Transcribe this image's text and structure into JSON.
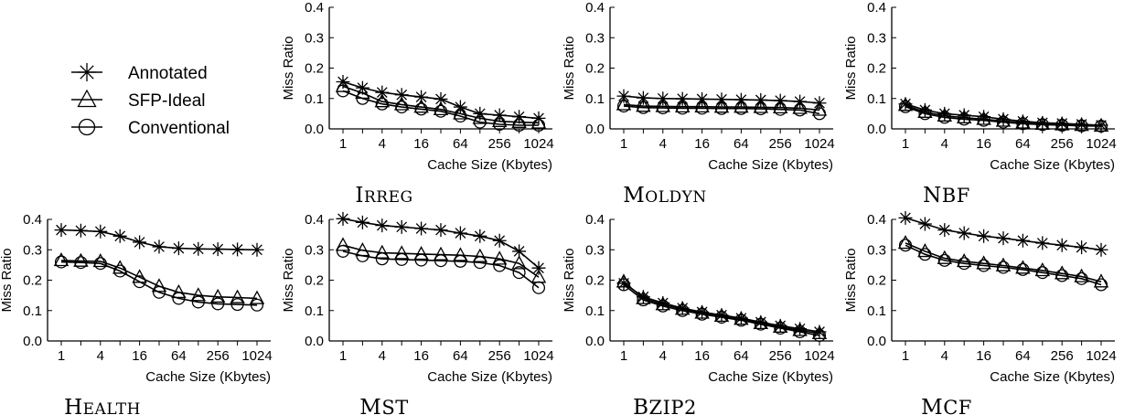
{
  "legend": {
    "items": [
      {
        "label": "Annotated",
        "marker": "asterisk"
      },
      {
        "label": "SFP-Ideal",
        "marker": "triangle"
      },
      {
        "label": "Conventional",
        "marker": "circle"
      }
    ]
  },
  "chart_data": [
    {
      "type": "line",
      "title": "IRREG",
      "xlabel": "Cache Size (Kbytes)",
      "ylabel": "Miss Ratio",
      "scale": "log2",
      "x": [
        1,
        2,
        4,
        8,
        16,
        32,
        64,
        128,
        256,
        512,
        1024
      ],
      "xticks": [
        "1",
        "4",
        "16",
        "64",
        "256",
        "1024"
      ],
      "ylim": [
        0,
        0.4
      ],
      "yticks": [
        "0.0",
        "0.1",
        "0.2",
        "0.3",
        "0.4"
      ],
      "series": [
        {
          "name": "Annotated",
          "values": [
            0.155,
            0.135,
            0.12,
            0.112,
            0.105,
            0.098,
            0.072,
            0.05,
            0.045,
            0.04,
            0.035
          ]
        },
        {
          "name": "SFP-Ideal",
          "values": [
            0.14,
            0.118,
            0.09,
            0.08,
            0.072,
            0.064,
            0.05,
            0.035,
            0.025,
            0.022,
            0.02
          ]
        },
        {
          "name": "Conventional",
          "values": [
            0.125,
            0.1,
            0.082,
            0.072,
            0.065,
            0.058,
            0.042,
            0.022,
            0.015,
            0.012,
            0.012
          ]
        }
      ]
    },
    {
      "type": "line",
      "title": "MOLDYN",
      "xlabel": "Cache Size (Kbytes)",
      "ylabel": "Miss Ratio",
      "scale": "log2",
      "x": [
        1,
        2,
        4,
        8,
        16,
        32,
        64,
        128,
        256,
        512,
        1024
      ],
      "xticks": [
        "1",
        "4",
        "16",
        "64",
        "256",
        "1024"
      ],
      "ylim": [
        0,
        0.4
      ],
      "yticks": [
        "0.0",
        "0.1",
        "0.2",
        "0.3",
        "0.4"
      ],
      "series": [
        {
          "name": "Annotated",
          "values": [
            0.108,
            0.102,
            0.1,
            0.099,
            0.098,
            0.097,
            0.096,
            0.095,
            0.093,
            0.09,
            0.085
          ]
        },
        {
          "name": "SFP-Ideal",
          "values": [
            0.08,
            0.075,
            0.074,
            0.073,
            0.073,
            0.072,
            0.072,
            0.071,
            0.07,
            0.068,
            0.062
          ]
        },
        {
          "name": "Conventional",
          "values": [
            0.075,
            0.07,
            0.069,
            0.068,
            0.068,
            0.067,
            0.067,
            0.066,
            0.064,
            0.062,
            0.05
          ]
        }
      ]
    },
    {
      "type": "line",
      "title": "NBF",
      "xlabel": "Cache Size (Kbytes)",
      "ylabel": "Miss Ratio",
      "scale": "log2",
      "x": [
        1,
        2,
        4,
        8,
        16,
        32,
        64,
        128,
        256,
        512,
        1024
      ],
      "xticks": [
        "1",
        "4",
        "16",
        "64",
        "256",
        "1024"
      ],
      "ylim": [
        0,
        0.4
      ],
      "yticks": [
        "0.0",
        "0.1",
        "0.2",
        "0.3",
        "0.4"
      ],
      "series": [
        {
          "name": "Annotated",
          "values": [
            0.082,
            0.062,
            0.05,
            0.045,
            0.04,
            0.032,
            0.025,
            0.02,
            0.018,
            0.015,
            0.012
          ]
        },
        {
          "name": "SFP-Ideal",
          "values": [
            0.078,
            0.055,
            0.043,
            0.037,
            0.032,
            0.026,
            0.02,
            0.016,
            0.014,
            0.012,
            0.01
          ]
        },
        {
          "name": "Conventional",
          "values": [
            0.073,
            0.05,
            0.038,
            0.032,
            0.028,
            0.022,
            0.017,
            0.014,
            0.012,
            0.01,
            0.009
          ]
        }
      ]
    },
    {
      "type": "line",
      "title": "HEALTH",
      "xlabel": "Cache Size (Kbytes)",
      "ylabel": "Miss Ratio",
      "scale": "log2",
      "x": [
        1,
        2,
        4,
        8,
        16,
        32,
        64,
        128,
        256,
        512,
        1024
      ],
      "xticks": [
        "1",
        "4",
        "16",
        "64",
        "256",
        "1024"
      ],
      "ylim": [
        0,
        0.4
      ],
      "yticks": [
        "0.0",
        "0.1",
        "0.2",
        "0.3",
        "0.4"
      ],
      "series": [
        {
          "name": "Annotated",
          "values": [
            0.365,
            0.363,
            0.36,
            0.345,
            0.325,
            0.31,
            0.305,
            0.303,
            0.302,
            0.301,
            0.3
          ]
        },
        {
          "name": "SFP-Ideal",
          "values": [
            0.265,
            0.263,
            0.262,
            0.24,
            0.21,
            0.18,
            0.16,
            0.15,
            0.145,
            0.143,
            0.14
          ]
        },
        {
          "name": "Conventional",
          "values": [
            0.26,
            0.258,
            0.255,
            0.23,
            0.195,
            0.16,
            0.14,
            0.128,
            0.122,
            0.12,
            0.118
          ]
        }
      ]
    },
    {
      "type": "line",
      "title": "MST",
      "xlabel": "Cache Size (Kbytes)",
      "ylabel": "Miss Ratio",
      "scale": "log2",
      "x": [
        1,
        2,
        4,
        8,
        16,
        32,
        64,
        128,
        256,
        512,
        1024
      ],
      "xticks": [
        "1",
        "4",
        "16",
        "64",
        "256",
        "1024"
      ],
      "ylim": [
        0,
        0.4
      ],
      "yticks": [
        "0.0",
        "0.1",
        "0.2",
        "0.3",
        "0.4"
      ],
      "series": [
        {
          "name": "Annotated",
          "values": [
            0.402,
            0.39,
            0.38,
            0.375,
            0.37,
            0.365,
            0.355,
            0.345,
            0.33,
            0.295,
            0.24
          ]
        },
        {
          "name": "SFP-Ideal",
          "values": [
            0.315,
            0.298,
            0.29,
            0.288,
            0.286,
            0.284,
            0.282,
            0.278,
            0.27,
            0.255,
            0.21
          ]
        },
        {
          "name": "Conventional",
          "values": [
            0.295,
            0.28,
            0.27,
            0.268,
            0.266,
            0.264,
            0.262,
            0.258,
            0.248,
            0.225,
            0.175
          ]
        }
      ]
    },
    {
      "type": "line",
      "title": "BZIP2",
      "xlabel": "Cache Size (Kbytes)",
      "ylabel": "Miss Ratio",
      "scale": "log2",
      "x": [
        1,
        2,
        4,
        8,
        16,
        32,
        64,
        128,
        256,
        512,
        1024
      ],
      "xticks": [
        "1",
        "4",
        "16",
        "64",
        "256",
        "1024"
      ],
      "ylim": [
        0,
        0.4
      ],
      "yticks": [
        "0.0",
        "0.1",
        "0.2",
        "0.3",
        "0.4"
      ],
      "series": [
        {
          "name": "Annotated",
          "values": [
            0.19,
            0.145,
            0.125,
            0.108,
            0.095,
            0.085,
            0.075,
            0.062,
            0.05,
            0.04,
            0.03
          ]
        },
        {
          "name": "SFP-Ideal",
          "values": [
            0.195,
            0.14,
            0.12,
            0.105,
            0.092,
            0.082,
            0.072,
            0.058,
            0.046,
            0.035,
            0.025
          ]
        },
        {
          "name": "Conventional",
          "values": [
            0.185,
            0.135,
            0.115,
            0.1,
            0.088,
            0.078,
            0.068,
            0.055,
            0.042,
            0.03,
            0.018
          ]
        }
      ]
    },
    {
      "type": "line",
      "title": "MCF",
      "xlabel": "Cache Size (Kbytes)",
      "ylabel": "Miss Ratio",
      "scale": "log2",
      "x": [
        1,
        2,
        4,
        8,
        16,
        32,
        64,
        128,
        256,
        512,
        1024
      ],
      "xticks": [
        "1",
        "4",
        "16",
        "64",
        "256",
        "1024"
      ],
      "ylim": [
        0,
        0.4
      ],
      "yticks": [
        "0.0",
        "0.1",
        "0.2",
        "0.3",
        "0.4"
      ],
      "series": [
        {
          "name": "Annotated",
          "values": [
            0.405,
            0.385,
            0.365,
            0.355,
            0.345,
            0.338,
            0.33,
            0.322,
            0.315,
            0.308,
            0.3
          ]
        },
        {
          "name": "SFP-Ideal",
          "values": [
            0.322,
            0.295,
            0.272,
            0.262,
            0.255,
            0.248,
            0.24,
            0.232,
            0.222,
            0.212,
            0.195
          ]
        },
        {
          "name": "Conventional",
          "values": [
            0.315,
            0.285,
            0.265,
            0.255,
            0.248,
            0.242,
            0.235,
            0.225,
            0.215,
            0.205,
            0.185
          ]
        }
      ]
    }
  ]
}
